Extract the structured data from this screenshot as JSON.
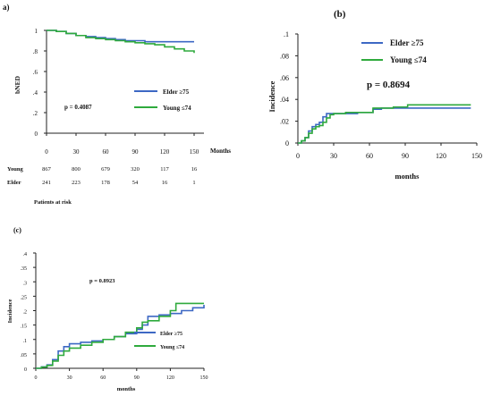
{
  "colors": {
    "elder": "#3d68c4",
    "young": "#2faa3d",
    "axis": "#222222"
  },
  "chart_data": [
    {
      "panel": "a)",
      "type": "line",
      "ylabel": "bNED",
      "xlabel": "Months",
      "xlim": [
        0,
        160
      ],
      "ylim": [
        0,
        1
      ],
      "xticks": [
        "0",
        "30",
        "60",
        "90",
        "120",
        "150"
      ],
      "yticks": [
        "0",
        ".2",
        ".4",
        ".6",
        ".8",
        "1"
      ],
      "annotation": "p = 0.4087",
      "legend_position": "right",
      "series": [
        {
          "name": "Elder ≥75",
          "color": "#3d68c4",
          "x": [
            0,
            10,
            20,
            30,
            40,
            50,
            60,
            70,
            80,
            90,
            100,
            110,
            120,
            150
          ],
          "y": [
            1.0,
            0.99,
            0.97,
            0.95,
            0.94,
            0.93,
            0.92,
            0.91,
            0.9,
            0.9,
            0.89,
            0.89,
            0.89,
            0.89
          ]
        },
        {
          "name": "Young ≤74",
          "color": "#2faa3d",
          "x": [
            0,
            10,
            20,
            30,
            40,
            50,
            60,
            70,
            80,
            90,
            100,
            110,
            120,
            130,
            140,
            150
          ],
          "y": [
            1.0,
            0.99,
            0.97,
            0.95,
            0.93,
            0.92,
            0.91,
            0.9,
            0.89,
            0.88,
            0.87,
            0.86,
            0.84,
            0.82,
            0.8,
            0.78
          ]
        }
      ],
      "risk_table": {
        "title": "Patients at risk",
        "rows": [
          {
            "label": "Young",
            "values": [
              "867",
              "800",
              "679",
              "320",
              "117",
              "16"
            ]
          },
          {
            "label": "Elder",
            "values": [
              "241",
              "223",
              "178",
              "54",
              "16",
              "1"
            ]
          }
        ]
      }
    },
    {
      "panel": "(b)",
      "type": "line",
      "ylabel": "Incidence",
      "xlabel": "months",
      "xlim": [
        0,
        150
      ],
      "ylim": [
        0,
        0.1
      ],
      "xticks": [
        "0",
        "30",
        "60",
        "90",
        "120",
        "150"
      ],
      "yticks": [
        "0",
        ".02",
        ".04",
        ".06",
        ".08",
        ".1"
      ],
      "annotation": "p = 0.8694",
      "legend_position": "top-right",
      "series": [
        {
          "name": "Elder ≥75",
          "color": "#3d68c4",
          "x": [
            0,
            3,
            6,
            9,
            12,
            15,
            18,
            21,
            24,
            27,
            30,
            40,
            50,
            60,
            63,
            70,
            80,
            90,
            120,
            145
          ],
          "y": [
            0.0,
            0.002,
            0.005,
            0.011,
            0.015,
            0.017,
            0.019,
            0.024,
            0.027,
            0.027,
            0.027,
            0.027,
            0.028,
            0.028,
            0.031,
            0.032,
            0.032,
            0.032,
            0.032,
            0.032
          ]
        },
        {
          "name": "Young ≤74",
          "color": "#2faa3d",
          "x": [
            0,
            3,
            6,
            9,
            12,
            15,
            18,
            21,
            24,
            27,
            30,
            40,
            50,
            60,
            63,
            70,
            80,
            90,
            92,
            120,
            145
          ],
          "y": [
            0.0,
            0.002,
            0.005,
            0.009,
            0.013,
            0.015,
            0.016,
            0.019,
            0.023,
            0.026,
            0.027,
            0.028,
            0.028,
            0.028,
            0.032,
            0.032,
            0.033,
            0.033,
            0.035,
            0.035,
            0.035
          ]
        }
      ]
    },
    {
      "panel": "(c)",
      "type": "line",
      "ylabel": "Incidence",
      "xlabel": "months",
      "xlim": [
        0,
        150
      ],
      "ylim": [
        0,
        0.4
      ],
      "xticks": [
        "0",
        "30",
        "60",
        "90",
        "120",
        "150"
      ],
      "yticks": [
        "0",
        ".05",
        ".1",
        ".15",
        ".2",
        ".25",
        ".3",
        ".35",
        ".4"
      ],
      "annotation": "p = 0.8923",
      "legend_position": "bottom-right",
      "series": [
        {
          "name": "Elder ≥75",
          "color": "#3d68c4",
          "x": [
            0,
            5,
            10,
            15,
            20,
            25,
            30,
            40,
            50,
            60,
            70,
            80,
            90,
            95,
            100,
            110,
            120,
            130,
            140,
            150
          ],
          "y": [
            0.0,
            0.005,
            0.012,
            0.03,
            0.06,
            0.075,
            0.085,
            0.09,
            0.095,
            0.1,
            0.11,
            0.12,
            0.135,
            0.15,
            0.18,
            0.185,
            0.19,
            0.2,
            0.21,
            0.22
          ]
        },
        {
          "name": "Young ≤74",
          "color": "#2faa3d",
          "x": [
            0,
            5,
            10,
            15,
            20,
            25,
            30,
            40,
            50,
            60,
            70,
            80,
            90,
            95,
            100,
            110,
            120,
            125,
            130,
            140,
            150
          ],
          "y": [
            0.0,
            0.004,
            0.01,
            0.025,
            0.045,
            0.06,
            0.07,
            0.08,
            0.09,
            0.1,
            0.11,
            0.125,
            0.14,
            0.16,
            0.165,
            0.18,
            0.2,
            0.225,
            0.225,
            0.225,
            0.225
          ]
        }
      ]
    }
  ]
}
